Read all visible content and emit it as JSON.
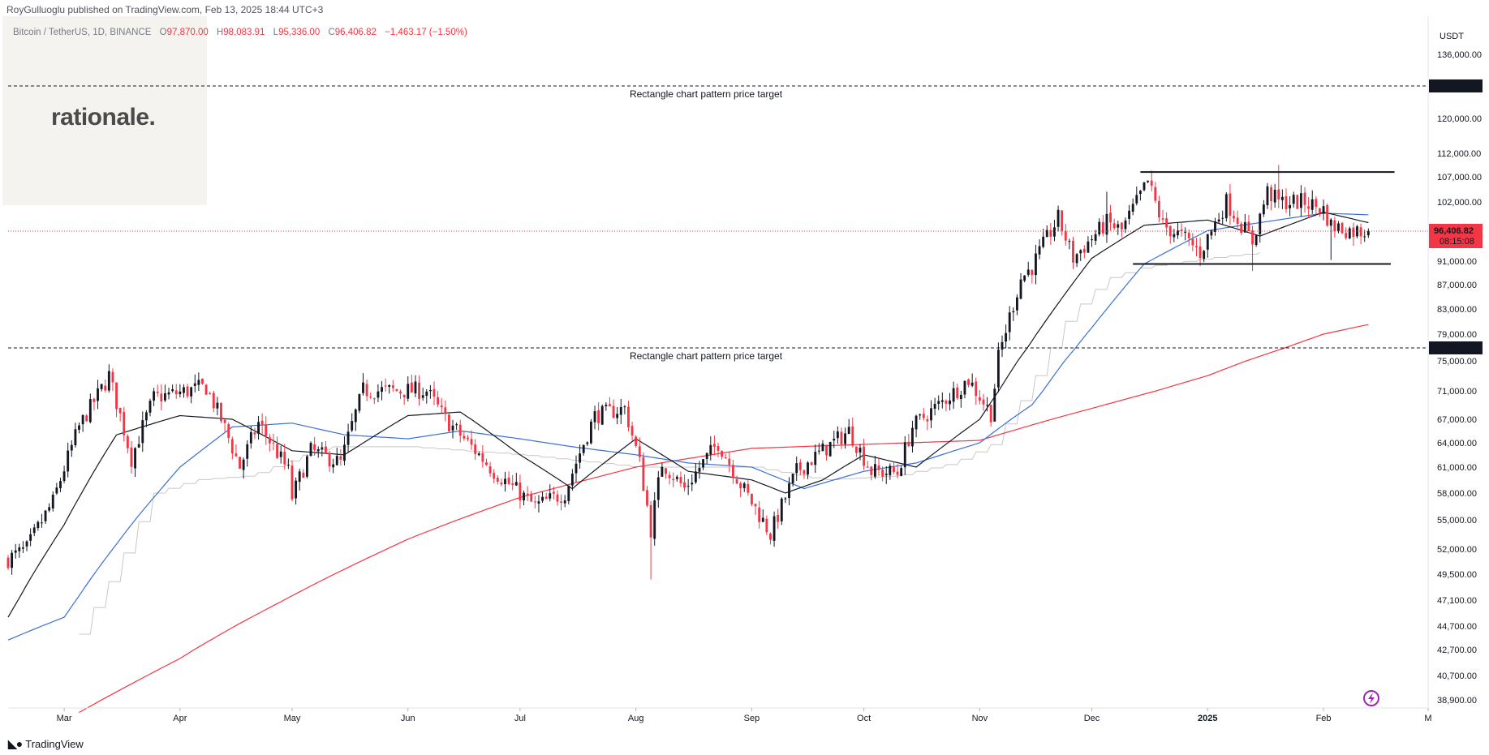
{
  "header": {
    "published_by": "RoyGulluoglu published on TradingView.com, Feb 13, 2025 18:44 UTC+3",
    "symbol": "Bitcoin / TetherUS, 1D, BINANCE",
    "open_label": "O",
    "open": "97,870.00",
    "high_label": "H",
    "high": "98,083.91",
    "low_label": "L",
    "low": "95,336.00",
    "close_label": "C",
    "close": "96,406.82",
    "change": "−1,463.17 (−1.50%)"
  },
  "watermark": {
    "logo_text": "rationale."
  },
  "footer": {
    "brand": "TradingView",
    "logo_icon": "tradingview-logo-icon"
  },
  "colors": {
    "up": "#131722",
    "down": "#f23645",
    "sma20": "#131722",
    "sma50": "#3b6fd6",
    "sma200": "#f23645",
    "trail_stop": "#c8c8c8",
    "price_line": "#f23645",
    "accent_purple": "#9c27b0"
  },
  "chart_data": {
    "type": "candlestick",
    "symbol": "Bitcoin / TetherUS",
    "interval": "1D",
    "exchange": "BINANCE",
    "y_unit": "USDT",
    "y_scale": "log",
    "ylim": [
      38000,
      140000
    ],
    "y_ticks": [
      {
        "value": 136000,
        "label": "136,000.00"
      },
      {
        "value": 120000,
        "label": "120,000.00"
      },
      {
        "value": 112000,
        "label": "112,000.00"
      },
      {
        "value": 107000,
        "label": "107,000.00"
      },
      {
        "value": 102000,
        "label": "102,000.00"
      },
      {
        "value": 91000,
        "label": "91,000.00"
      },
      {
        "value": 87000,
        "label": "87,000.00"
      },
      {
        "value": 83000,
        "label": "83,000.00"
      },
      {
        "value": 79000,
        "label": "79,000.00"
      },
      {
        "value": 75000,
        "label": "75,000.00"
      },
      {
        "value": 71000,
        "label": "71,000.00"
      },
      {
        "value": 67000,
        "label": "67,000.00"
      },
      {
        "value": 64000,
        "label": "64,000.00"
      },
      {
        "value": 61000,
        "label": "61,000.00"
      },
      {
        "value": 58000,
        "label": "58,000.00"
      },
      {
        "value": 55000,
        "label": "55,000.00"
      },
      {
        "value": 52000,
        "label": "52,000.00"
      },
      {
        "value": 49500,
        "label": "49,500.00"
      },
      {
        "value": 47100,
        "label": "47,100.00"
      },
      {
        "value": 44700,
        "label": "44,700.00"
      },
      {
        "value": 42700,
        "label": "42,700.00"
      },
      {
        "value": 40700,
        "label": "40,700.00"
      },
      {
        "value": 38900,
        "label": "38,900.00"
      }
    ],
    "x_ticks": [
      {
        "date": "2024-03-01",
        "label": "Mar",
        "bold": false
      },
      {
        "date": "2024-04-01",
        "label": "Apr",
        "bold": false
      },
      {
        "date": "2024-05-01",
        "label": "May",
        "bold": false
      },
      {
        "date": "2024-06-01",
        "label": "Jun",
        "bold": false
      },
      {
        "date": "2024-07-01",
        "label": "Jul",
        "bold": false
      },
      {
        "date": "2024-08-01",
        "label": "Aug",
        "bold": false
      },
      {
        "date": "2024-09-01",
        "label": "Sep",
        "bold": false
      },
      {
        "date": "2024-10-01",
        "label": "Oct",
        "bold": false
      },
      {
        "date": "2024-11-01",
        "label": "Nov",
        "bold": false
      },
      {
        "date": "2024-12-01",
        "label": "Dec",
        "bold": false
      },
      {
        "date": "2025-01-01",
        "label": "2025",
        "bold": true
      },
      {
        "date": "2025-02-01",
        "label": "Feb",
        "bold": false
      },
      {
        "date": "2025-03-01",
        "label": "M",
        "bold": false
      }
    ],
    "x_start": "2024-02-15",
    "x_end": "2025-03-01",
    "close_anchors": [
      [
        "2024-02-15",
        51000
      ],
      [
        "2024-02-20",
        52000
      ],
      [
        "2024-02-27",
        57000
      ],
      [
        "2024-03-05",
        66000
      ],
      [
        "2024-03-13",
        73000
      ],
      [
        "2024-03-19",
        62000
      ],
      [
        "2024-03-25",
        70000
      ],
      [
        "2024-04-08",
        71500
      ],
      [
        "2024-04-12",
        67000
      ],
      [
        "2024-04-17",
        61000
      ],
      [
        "2024-04-22",
        66500
      ],
      [
        "2024-04-30",
        60500
      ],
      [
        "2024-05-01",
        57500
      ],
      [
        "2024-05-06",
        63000
      ],
      [
        "2024-05-14",
        61500
      ],
      [
        "2024-05-20",
        71000
      ],
      [
        "2024-06-06",
        71000
      ],
      [
        "2024-06-11",
        67000
      ],
      [
        "2024-06-24",
        60500
      ],
      [
        "2024-07-05",
        56500
      ],
      [
        "2024-07-13",
        58000
      ],
      [
        "2024-07-21",
        67500
      ],
      [
        "2024-07-29",
        68500
      ],
      [
        "2024-08-02",
        61500
      ],
      [
        "2024-08-05",
        54000
      ],
      [
        "2024-08-08",
        61500
      ],
      [
        "2024-08-14",
        58500
      ],
      [
        "2024-08-23",
        64000
      ],
      [
        "2024-08-29",
        59000
      ],
      [
        "2024-09-06",
        53500
      ],
      [
        "2024-09-13",
        60500
      ],
      [
        "2024-09-27",
        65500
      ],
      [
        "2024-10-03",
        60500
      ],
      [
        "2024-10-10",
        60300
      ],
      [
        "2024-10-14",
        66000
      ],
      [
        "2024-10-21",
        69000
      ],
      [
        "2024-10-29",
        72500
      ],
      [
        "2024-11-04",
        67800
      ],
      [
        "2024-11-06",
        75500
      ],
      [
        "2024-11-12",
        88000
      ],
      [
        "2024-11-15",
        90000
      ],
      [
        "2024-11-22",
        98800
      ],
      [
        "2024-11-26",
        91500
      ],
      [
        "2024-12-05",
        98000
      ],
      [
        "2024-12-09",
        96500
      ],
      [
        "2024-12-16",
        106000
      ],
      [
        "2024-12-20",
        97500
      ],
      [
        "2024-12-26",
        95000
      ],
      [
        "2024-12-30",
        92500
      ],
      [
        "2025-01-06",
        102000
      ],
      [
        "2025-01-13",
        94500
      ],
      [
        "2025-01-17",
        104000
      ],
      [
        "2025-01-20",
        102000
      ],
      [
        "2025-01-27",
        102000
      ],
      [
        "2025-02-01",
        100500
      ],
      [
        "2025-02-03",
        97500
      ],
      [
        "2025-02-08",
        96500
      ],
      [
        "2025-02-13",
        96406
      ]
    ],
    "sma20_anchors": [
      [
        "2024-02-15",
        45500
      ],
      [
        "2024-03-01",
        54500
      ],
      [
        "2024-03-15",
        65000
      ],
      [
        "2024-04-01",
        67500
      ],
      [
        "2024-04-15",
        67000
      ],
      [
        "2024-05-01",
        63000
      ],
      [
        "2024-05-15",
        62500
      ],
      [
        "2024-06-01",
        67500
      ],
      [
        "2024-06-15",
        68000
      ],
      [
        "2024-07-01",
        62500
      ],
      [
        "2024-07-15",
        58500
      ],
      [
        "2024-08-01",
        64500
      ],
      [
        "2024-08-15",
        60500
      ],
      [
        "2024-09-01",
        59500
      ],
      [
        "2024-09-10",
        58000
      ],
      [
        "2024-09-20",
        59500
      ],
      [
        "2024-10-01",
        62500
      ],
      [
        "2024-10-15",
        61000
      ],
      [
        "2024-11-01",
        67000
      ],
      [
        "2024-11-15",
        78000
      ],
      [
        "2024-12-01",
        91500
      ],
      [
        "2024-12-15",
        97500
      ],
      [
        "2025-01-01",
        98500
      ],
      [
        "2025-01-15",
        95500
      ],
      [
        "2025-02-01",
        100000
      ],
      [
        "2025-02-13",
        98000
      ]
    ],
    "sma50_anchors": [
      [
        "2024-02-15",
        43500
      ],
      [
        "2024-03-01",
        45500
      ],
      [
        "2024-03-15",
        52500
      ],
      [
        "2024-04-01",
        61000
      ],
      [
        "2024-04-15",
        66000
      ],
      [
        "2024-05-01",
        66500
      ],
      [
        "2024-05-15",
        65000
      ],
      [
        "2024-06-01",
        64500
      ],
      [
        "2024-06-15",
        65500
      ],
      [
        "2024-07-01",
        64500
      ],
      [
        "2024-07-15",
        63500
      ],
      [
        "2024-08-01",
        62500
      ],
      [
        "2024-08-15",
        61500
      ],
      [
        "2024-09-01",
        61000
      ],
      [
        "2024-09-15",
        58500
      ],
      [
        "2024-10-01",
        60500
      ],
      [
        "2024-10-15",
        61500
      ],
      [
        "2024-11-01",
        64000
      ],
      [
        "2024-11-15",
        69000
      ],
      [
        "2024-12-01",
        80000
      ],
      [
        "2024-12-15",
        90500
      ],
      [
        "2025-01-01",
        96500
      ],
      [
        "2025-01-15",
        98000
      ],
      [
        "2025-02-01",
        99800
      ],
      [
        "2025-02-13",
        99500
      ]
    ],
    "sma200_anchors": [
      [
        "2024-03-05",
        38000
      ],
      [
        "2024-04-01",
        42000
      ],
      [
        "2024-05-01",
        47500
      ],
      [
        "2024-06-01",
        53000
      ],
      [
        "2024-07-01",
        57500
      ],
      [
        "2024-08-01",
        61000
      ],
      [
        "2024-09-01",
        63300
      ],
      [
        "2024-10-01",
        63800
      ],
      [
        "2024-11-01",
        64300
      ],
      [
        "2024-12-01",
        68500
      ],
      [
        "2025-01-01",
        73000
      ],
      [
        "2025-02-01",
        79000
      ],
      [
        "2025-02-13",
        80500
      ]
    ],
    "trail_anchors": [
      [
        "2024-03-05",
        44000
      ],
      [
        "2024-03-15",
        50000
      ],
      [
        "2024-03-25",
        58000
      ],
      [
        "2024-04-05",
        59500
      ],
      [
        "2024-04-20",
        60000
      ],
      [
        "2024-05-10",
        63500
      ],
      [
        "2024-06-01",
        63500
      ],
      [
        "2024-07-01",
        62500
      ],
      [
        "2024-08-01",
        61000
      ],
      [
        "2024-09-01",
        61000
      ],
      [
        "2024-09-20",
        59500
      ],
      [
        "2024-10-10",
        60000
      ],
      [
        "2024-10-25",
        61500
      ],
      [
        "2024-11-05",
        64000
      ],
      [
        "2024-11-15",
        72000
      ],
      [
        "2024-11-25",
        82000
      ],
      [
        "2024-12-05",
        88000
      ],
      [
        "2024-12-15",
        90000
      ],
      [
        "2025-01-01",
        91500
      ],
      [
        "2025-01-15",
        92500
      ]
    ],
    "horizontal_lines": [
      {
        "price": 128000,
        "label": "128,000.00",
        "style": "dashed",
        "annotation": "Rectangle chart pattern price target"
      },
      {
        "price": 77000,
        "label": "77,000.00",
        "style": "dashed",
        "annotation": "Rectangle chart pattern price target"
      }
    ],
    "rectangle": {
      "top": 108000,
      "bottom": 90500,
      "top_from": "2024-12-14",
      "top_to": "2025-02-20",
      "bottom_from": "2024-12-12",
      "bottom_to": "2025-02-19"
    },
    "last_price": {
      "value": 96406.82,
      "label": "96,406.82",
      "countdown": "08:15:08"
    },
    "currency_label": "USDT",
    "notable_wicks": [
      {
        "date": "2024-08-05",
        "low": 49000
      },
      {
        "date": "2025-01-13",
        "low": 89300
      },
      {
        "date": "2025-02-03",
        "low": 91200
      },
      {
        "date": "2024-12-05",
        "high": 104000
      },
      {
        "date": "2024-12-17",
        "high": 108300
      },
      {
        "date": "2025-01-20",
        "high": 109500
      }
    ]
  }
}
